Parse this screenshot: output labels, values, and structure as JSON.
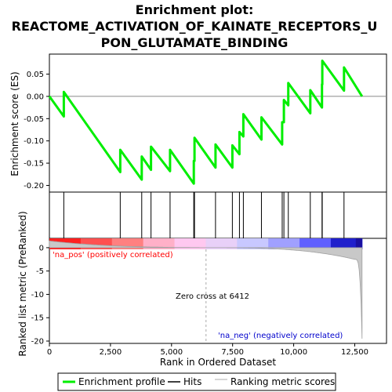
{
  "chart_data": {
    "type": "line",
    "title_lines": [
      "Enrichment plot:",
      "REACTOME_ACTIVATION_OF_KAINATE_RECEPTORS_U",
      "PON_GLUTAMATE_BINDING"
    ],
    "top_panel": {
      "ylabel": "Enrichment score (ES)",
      "ylim": [
        -0.215,
        0.095
      ],
      "yticks": [
        0.05,
        0.0,
        -0.05,
        -0.1,
        -0.15,
        -0.2
      ],
      "ytick_labels": [
        "0.05",
        "0.00",
        "-0.05",
        "-0.10",
        "-0.15",
        "-0.20"
      ]
    },
    "bottom_panel": {
      "ylabel": "Ranked list metric (PreRanked)",
      "ylim": [
        -20.5,
        2.0
      ],
      "yticks": [
        0,
        -5,
        -10,
        -15,
        -20
      ],
      "ytick_labels": [
        "0",
        "-5",
        "-10",
        "-15",
        "-20"
      ],
      "zero_cross_rank": 6412,
      "zero_cross_label": "Zero cross at 6412",
      "pos_label": "'na_pos' (positively correlated)",
      "neg_label": "'na_neg' (negatively correlated)"
    },
    "xlabel": "Rank in Ordered Dataset",
    "xlim": [
      0,
      13800
    ],
    "xticks": [
      0,
      2500,
      5000,
      7500,
      10000,
      12500
    ],
    "xtick_labels": [
      "0",
      "2,500",
      "5,000",
      "7,500",
      "10,000",
      "12,500"
    ],
    "n_genes": 12800,
    "hits": [
      590,
      2900,
      3780,
      4160,
      4940,
      5910,
      5940,
      6800,
      7490,
      7780,
      7940,
      8680,
      9530,
      9600,
      9780,
      10680,
      11160,
      11170,
      12060
    ],
    "es_start": 0.0,
    "es_end": 0.0,
    "es_points": [
      [
        0,
        0.0
      ],
      [
        590,
        -0.045
      ],
      [
        590,
        0.01
      ],
      [
        2900,
        -0.17
      ],
      [
        2900,
        -0.12
      ],
      [
        3780,
        -0.187
      ],
      [
        3780,
        -0.135
      ],
      [
        4160,
        -0.165
      ],
      [
        4160,
        -0.113
      ],
      [
        4940,
        -0.168
      ],
      [
        4940,
        -0.12
      ],
      [
        5910,
        -0.196
      ],
      [
        5910,
        -0.145
      ],
      [
        5940,
        -0.145
      ],
      [
        5940,
        -0.093
      ],
      [
        6800,
        -0.16
      ],
      [
        6800,
        -0.108
      ],
      [
        7490,
        -0.16
      ],
      [
        7490,
        -0.11
      ],
      [
        7780,
        -0.13
      ],
      [
        7780,
        -0.08
      ],
      [
        7940,
        -0.09
      ],
      [
        7940,
        -0.04
      ],
      [
        8680,
        -0.097
      ],
      [
        8680,
        -0.047
      ],
      [
        9530,
        -0.108
      ],
      [
        9530,
        -0.058
      ],
      [
        9600,
        -0.058
      ],
      [
        9600,
        -0.008
      ],
      [
        9780,
        -0.02
      ],
      [
        9780,
        0.03
      ],
      [
        10680,
        -0.038
      ],
      [
        10680,
        0.014
      ],
      [
        11160,
        -0.025
      ],
      [
        11160,
        0.027
      ],
      [
        11170,
        0.027
      ],
      [
        11170,
        0.08
      ],
      [
        12060,
        0.013
      ],
      [
        12060,
        0.065
      ],
      [
        12800,
        0.0
      ]
    ],
    "ranked_metric_shape": {
      "start_value": 1.2,
      "zero_at": 6412,
      "end_value": -2.5,
      "min_value": -19.5
    },
    "colors": {
      "es_line": "#00ee00",
      "hits": "#000000",
      "zero_line": "#aaaaaa",
      "metric_fill": "#c8c8c8",
      "pos_label": "#ff0000",
      "neg_label": "#0000cc",
      "band_stops": [
        "#ff2020",
        "#ff5050",
        "#ff8080",
        "#ffb0c8",
        "#ffc8f0",
        "#e8d0f8",
        "#c8c8ff",
        "#a0a0ff",
        "#6060ff",
        "#2020cc"
      ]
    },
    "legend": {
      "entries": [
        "Enrichment profile",
        "Hits",
        "Ranking metric scores"
      ],
      "placement": "bottom"
    },
    "grid": false
  }
}
